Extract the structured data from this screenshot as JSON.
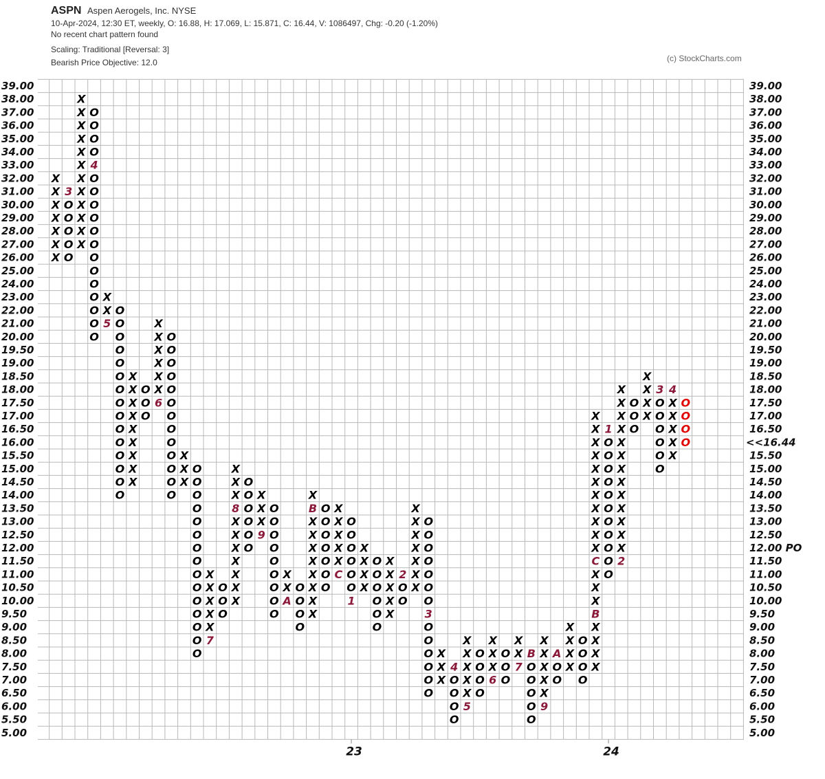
{
  "header": {
    "symbol": "ASPN",
    "company": "Aspen Aerogels, Inc.  NYSE",
    "quote": "10-Apr-2024, 12:30 ET, weekly, O: 16.88, H: 17.069, L: 15.871, C: 16.44, V: 1086497, Chg: -0.20 (-1.20%)",
    "pattern": "No recent chart pattern found",
    "scaling": "Scaling: Traditional [Reversal: 3]",
    "objective": "Bearish Price Objective: 12.0",
    "copyright": "(c) StockCharts.com"
  },
  "chart_data": {
    "type": "point-and-figure",
    "ylim": [
      5,
      39
    ],
    "yticks": [
      {
        "value": 39,
        "label": "39.00"
      },
      {
        "value": 38,
        "label": "38.00"
      },
      {
        "value": 37,
        "label": "37.00"
      },
      {
        "value": 36,
        "label": "36.00"
      },
      {
        "value": 35,
        "label": "35.00"
      },
      {
        "value": 34,
        "label": "34.00"
      },
      {
        "value": 33,
        "label": "33.00"
      },
      {
        "value": 32,
        "label": "32.00"
      },
      {
        "value": 31,
        "label": "31.00"
      },
      {
        "value": 30,
        "label": "30.00"
      },
      {
        "value": 29,
        "label": "29.00"
      },
      {
        "value": 28,
        "label": "28.00"
      },
      {
        "value": 27,
        "label": "27.00"
      },
      {
        "value": 26,
        "label": "26.00"
      },
      {
        "value": 25,
        "label": "25.00"
      },
      {
        "value": 24,
        "label": "24.00"
      },
      {
        "value": 23,
        "label": "23.00"
      },
      {
        "value": 22,
        "label": "22.00"
      },
      {
        "value": 21,
        "label": "21.00"
      },
      {
        "value": 20,
        "label": "20.00"
      },
      {
        "value": 19.5,
        "label": "19.50"
      },
      {
        "value": 19,
        "label": "19.00"
      },
      {
        "value": 18.5,
        "label": "18.50"
      },
      {
        "value": 18,
        "label": "18.00"
      },
      {
        "value": 17.5,
        "label": "17.50"
      },
      {
        "value": 17,
        "label": "17.00"
      },
      {
        "value": 16.5,
        "label": "16.50"
      },
      {
        "value": 16,
        "label": "16.00"
      },
      {
        "value": 15.5,
        "label": "15.50"
      },
      {
        "value": 15,
        "label": "15.00"
      },
      {
        "value": 14.5,
        "label": "14.50"
      },
      {
        "value": 14,
        "label": "14.00"
      },
      {
        "value": 13.5,
        "label": "13.50"
      },
      {
        "value": 13,
        "label": "13.00"
      },
      {
        "value": 12.5,
        "label": "12.50"
      },
      {
        "value": 12,
        "label": "12.00"
      },
      {
        "value": 11.5,
        "label": "11.50"
      },
      {
        "value": 11,
        "label": "11.00"
      },
      {
        "value": 10.5,
        "label": "10.50"
      },
      {
        "value": 10,
        "label": "10.00"
      },
      {
        "value": 9.5,
        "label": "9.50"
      },
      {
        "value": 9,
        "label": "9.00"
      },
      {
        "value": 8.5,
        "label": "8.50"
      },
      {
        "value": 8,
        "label": "8.00"
      },
      {
        "value": 7.5,
        "label": "7.50"
      },
      {
        "value": 7,
        "label": "7.00"
      },
      {
        "value": 6.5,
        "label": "6.50"
      },
      {
        "value": 6,
        "label": "6.00"
      },
      {
        "value": 5.5,
        "label": "5.50"
      },
      {
        "value": 5,
        "label": "5.00"
      }
    ],
    "last_price": {
      "value": 16.44,
      "label": "<<16.44"
    },
    "price_objective": {
      "value": 12,
      "label": "12.00 PO"
    },
    "highlight_color": "#e00000",
    "x_color": "#000000",
    "o_color": "#000000",
    "marker_color": "#8b1a3a",
    "columns": [
      {
        "kind": "X",
        "low": 26,
        "high": 32
      },
      {
        "kind": "O",
        "low": 26,
        "high": 31,
        "markers": [
          {
            "level": 31,
            "label": "3"
          }
        ]
      },
      {
        "kind": "X",
        "low": 27,
        "high": 38
      },
      {
        "kind": "O",
        "low": 20,
        "high": 37,
        "markers": [
          {
            "level": 33,
            "label": "4"
          }
        ]
      },
      {
        "kind": "X",
        "low": 21,
        "high": 23,
        "markers": [
          {
            "level": 21,
            "label": "5"
          }
        ]
      },
      {
        "kind": "O",
        "low": 14,
        "high": 22
      },
      {
        "kind": "X",
        "low": 14.5,
        "high": 18.5
      },
      {
        "kind": "O",
        "low": 17,
        "high": 18
      },
      {
        "kind": "X",
        "low": 17.5,
        "high": 21,
        "markers": [
          {
            "level": 17.5,
            "label": "6"
          }
        ]
      },
      {
        "kind": "O",
        "low": 14,
        "high": 20
      },
      {
        "kind": "X",
        "low": 14.5,
        "high": 15.5
      },
      {
        "kind": "O",
        "low": 8,
        "high": 15
      },
      {
        "kind": "X",
        "low": 8.5,
        "high": 11,
        "markers": [
          {
            "level": 8.5,
            "label": "7"
          }
        ]
      },
      {
        "kind": "O",
        "low": 9.5,
        "high": 10.5
      },
      {
        "kind": "X",
        "low": 10,
        "high": 15,
        "markers": [
          {
            "level": 13.5,
            "label": "8"
          }
        ]
      },
      {
        "kind": "O",
        "low": 12,
        "high": 14.5
      },
      {
        "kind": "X",
        "low": 12.5,
        "high": 14,
        "markers": [
          {
            "level": 12.5,
            "label": "9"
          }
        ]
      },
      {
        "kind": "O",
        "low": 9.5,
        "high": 13.5
      },
      {
        "kind": "X",
        "low": 10,
        "high": 11,
        "markers": [
          {
            "level": 10,
            "label": "A"
          }
        ]
      },
      {
        "kind": "O",
        "low": 9,
        "high": 10.5
      },
      {
        "kind": "X",
        "low": 9.5,
        "high": 14,
        "markers": [
          {
            "level": 13.5,
            "label": "B"
          }
        ]
      },
      {
        "kind": "O",
        "low": 10.5,
        "high": 13.5
      },
      {
        "kind": "X",
        "low": 11,
        "high": 13.5,
        "markers": [
          {
            "level": 11,
            "label": "C"
          }
        ]
      },
      {
        "kind": "O",
        "low": 10,
        "high": 13,
        "markers": [
          {
            "level": 10,
            "label": "1"
          }
        ],
        "year": "23"
      },
      {
        "kind": "X",
        "low": 10.5,
        "high": 12
      },
      {
        "kind": "O",
        "low": 9,
        "high": 11.5
      },
      {
        "kind": "X",
        "low": 9.5,
        "high": 11.5
      },
      {
        "kind": "O",
        "low": 10,
        "high": 11,
        "markers": [
          {
            "level": 11,
            "label": "2"
          }
        ]
      },
      {
        "kind": "X",
        "low": 10.5,
        "high": 13.5
      },
      {
        "kind": "O",
        "low": 6.5,
        "high": 13,
        "markers": [
          {
            "level": 9.5,
            "label": "3"
          }
        ]
      },
      {
        "kind": "X",
        "low": 7,
        "high": 8
      },
      {
        "kind": "O",
        "low": 5.5,
        "high": 7.5,
        "markers": [
          {
            "level": 7.5,
            "label": "4"
          }
        ]
      },
      {
        "kind": "X",
        "low": 6,
        "high": 8.5,
        "markers": [
          {
            "level": 6,
            "label": "5"
          }
        ]
      },
      {
        "kind": "O",
        "low": 6.5,
        "high": 8
      },
      {
        "kind": "X",
        "low": 7,
        "high": 8.5,
        "markers": [
          {
            "level": 7,
            "label": "6"
          }
        ]
      },
      {
        "kind": "O",
        "low": 7,
        "high": 8
      },
      {
        "kind": "X",
        "low": 7.5,
        "high": 8.5,
        "markers": [
          {
            "level": 7.5,
            "label": "7"
          }
        ]
      },
      {
        "kind": "O",
        "low": 5.5,
        "high": 8,
        "markers": [
          {
            "level": 8,
            "label": "B"
          }
        ]
      },
      {
        "kind": "X",
        "low": 6,
        "high": 8.5,
        "markers": [
          {
            "level": 6,
            "label": "9"
          }
        ]
      },
      {
        "kind": "O",
        "low": 7,
        "high": 8,
        "markers": [
          {
            "level": 8,
            "label": "A"
          }
        ]
      },
      {
        "kind": "X",
        "low": 7.5,
        "high": 9
      },
      {
        "kind": "O",
        "low": 7,
        "high": 8.5
      },
      {
        "kind": "X",
        "low": 7.5,
        "high": 17,
        "markers": [
          {
            "level": 9.5,
            "label": "B"
          },
          {
            "level": 11.5,
            "label": "C"
          }
        ]
      },
      {
        "kind": "O",
        "low": 11,
        "high": 16.5,
        "markers": [
          {
            "level": 16.5,
            "label": "1"
          }
        ],
        "year": "24"
      },
      {
        "kind": "X",
        "low": 11.5,
        "high": 18,
        "markers": [
          {
            "level": 11.5,
            "label": "2"
          }
        ]
      },
      {
        "kind": "O",
        "low": 16.5,
        "high": 17.5
      },
      {
        "kind": "X",
        "low": 17,
        "high": 18.5
      },
      {
        "kind": "O",
        "low": 15,
        "high": 18,
        "markers": [
          {
            "level": 18,
            "label": "3"
          }
        ]
      },
      {
        "kind": "X",
        "low": 15.5,
        "high": 18,
        "markers": [
          {
            "level": 18,
            "label": "4"
          }
        ]
      },
      {
        "kind": "O",
        "low": 16,
        "high": 17.5
      }
    ]
  }
}
